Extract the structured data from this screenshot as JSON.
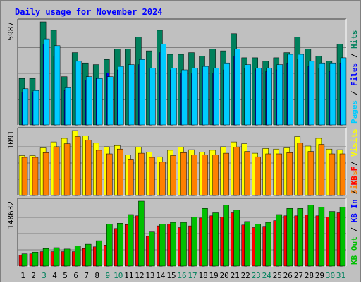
{
  "colors": {
    "background": "#c0c0c0",
    "plot_bg": "#c0c0c0",
    "title": "#0000ff",
    "hits": "#00805c",
    "files": "#0000ff",
    "pages": "#00ccff",
    "visits": "#ffff00",
    "sites": "#ff8000",
    "kb_in": "#00c000",
    "kb_out_label": "#00c000",
    "kb_f": "#ff0000",
    "weekend_day": "#00805c",
    "weekday_day": "#000000"
  },
  "chart_data": {
    "type": "bar",
    "title": "Daily usage for November 2024",
    "categories": [
      "1",
      "2",
      "3",
      "4",
      "5",
      "6",
      "7",
      "8",
      "9",
      "10",
      "11",
      "12",
      "13",
      "14",
      "15",
      "16",
      "17",
      "18",
      "19",
      "20",
      "21",
      "22",
      "23",
      "24",
      "25",
      "26",
      "27",
      "28",
      "29",
      "30",
      "31"
    ],
    "weekend_days": [
      "3",
      "9",
      "10",
      "16",
      "17",
      "23",
      "24",
      "30",
      "31"
    ],
    "panels": [
      {
        "name": "hits-files-pages",
        "ymax_label": "5987",
        "ymax": 5987,
        "legend": [
          {
            "text": "Hits",
            "color": "#00805c"
          },
          {
            "text": "/",
            "color": "#000000"
          },
          {
            "text": "Files",
            "color": "#0000ff"
          },
          {
            "text": "/",
            "color": "#000000"
          },
          {
            "text": "Pages",
            "color": "#00ccff"
          }
        ],
        "series": [
          {
            "name": "Hits",
            "values": [
              2700,
              2700,
              5987,
              5500,
              2800,
              4200,
              3600,
              3500,
              3800,
              4400,
              4400,
              5100,
              4300,
              5500,
              4100,
              4100,
              4200,
              4000,
              4400,
              4300,
              5300,
              3900,
              3900,
              3700,
              3900,
              4200,
              5100,
              4400,
              4000,
              3700,
              4700
            ],
            "color": "#00805c"
          },
          {
            "name": "Files",
            "values": [
              1900,
              1900,
              4700,
              4000,
              2000,
              3500,
              2600,
              2700,
              3000,
              3200,
              3300,
              3500,
              3300,
              4200,
              3200,
              3000,
              3000,
              3300,
              3000,
              3200,
              4000,
              3300,
              3200,
              3100,
              3200,
              3600,
              3800,
              3400,
              3300,
              3100,
              3600
            ],
            "color": "#0000ff"
          },
          {
            "name": "Pages",
            "values": [
              2100,
              2000,
              5000,
              4600,
              2200,
              3700,
              2800,
              2700,
              2800,
              3400,
              3500,
              3800,
              3300,
              4700,
              3300,
              3200,
              3300,
              3400,
              3300,
              3600,
              4400,
              3500,
              3300,
              3300,
              3500,
              4100,
              4100,
              3700,
              3600,
              3600,
              3900
            ],
            "color": "#00ccff"
          }
        ]
      },
      {
        "name": "visits-sites",
        "ymax_label": "1091",
        "ymax": 1091,
        "legend": [
          {
            "text": "Visits",
            "color": "#ffff00"
          },
          {
            "text": "/",
            "color": "#000000"
          },
          {
            "text": "Sites",
            "color": "#ff8000"
          }
        ],
        "series": [
          {
            "name": "Visits",
            "values": [
              670,
              670,
              800,
              900,
              960,
              1091,
              1000,
              880,
              820,
              840,
              680,
              810,
              730,
              650,
              760,
              810,
              770,
              730,
              760,
              820,
              900,
              870,
              710,
              790,
              780,
              800,
              990,
              830,
              960,
              780,
              770
            ],
            "color": "#ffff00"
          },
          {
            "name": "Sites",
            "values": [
              640,
              640,
              720,
              820,
              870,
              990,
              930,
              760,
              700,
              780,
              600,
              710,
              640,
              560,
              670,
              720,
              680,
              680,
              680,
              710,
              810,
              740,
              650,
              700,
              700,
              720,
              880,
              740,
              860,
              700,
              700
            ],
            "color": "#ff8000"
          }
        ]
      },
      {
        "name": "kb-in-out",
        "ymax_label": "148632",
        "ymax": 148632,
        "legend": [
          {
            "text": "KB F",
            "color": "#ff0000"
          },
          {
            "text": "/",
            "color": "#000000"
          },
          {
            "text": "KB In",
            "color": "#0000ff"
          },
          {
            "text": "/",
            "color": "#000000"
          },
          {
            "text": "KB Out",
            "color": "#00c000"
          }
        ],
        "series": [
          {
            "name": "KB F",
            "values": [
              25000,
              28000,
              33000,
              33000,
              33000,
              33000,
              40000,
              44000,
              48000,
              86000,
              95000,
              115000,
              68000,
              92000,
              96000,
              88000,
              92000,
              110000,
              115000,
              112000,
              122000,
              94000,
              88000,
              91000,
              104000,
              115000,
              115000,
              117000,
              115000,
              112000,
              122000
            ],
            "color": "#ff0000"
          },
          {
            "name": "KB In",
            "values": [
              3000,
              3500,
              4000,
              4000,
              4000,
              4000,
              4500,
              5000,
              5000,
              6000,
              6000,
              6500,
              5500,
              6000,
              6000,
              6000,
              6000,
              7000,
              7000,
              7000,
              7500,
              6000,
              6000,
              6000,
              6500,
              7000,
              7000,
              7000,
              7000,
              7000,
              7500
            ],
            "color": "#0000ff"
          },
          {
            "name": "KB Out",
            "values": [
              28000,
              32000,
              40000,
              42000,
              39000,
              46000,
              50000,
              58000,
              96000,
              98000,
              118000,
              148632,
              78000,
              96000,
              100000,
              100000,
              112000,
              132000,
              122000,
              140000,
              128000,
              102000,
              96000,
              100000,
              118000,
              132000,
              132000,
              140000,
              135000,
              125000,
              135000
            ],
            "color": "#00c000"
          }
        ]
      }
    ]
  }
}
